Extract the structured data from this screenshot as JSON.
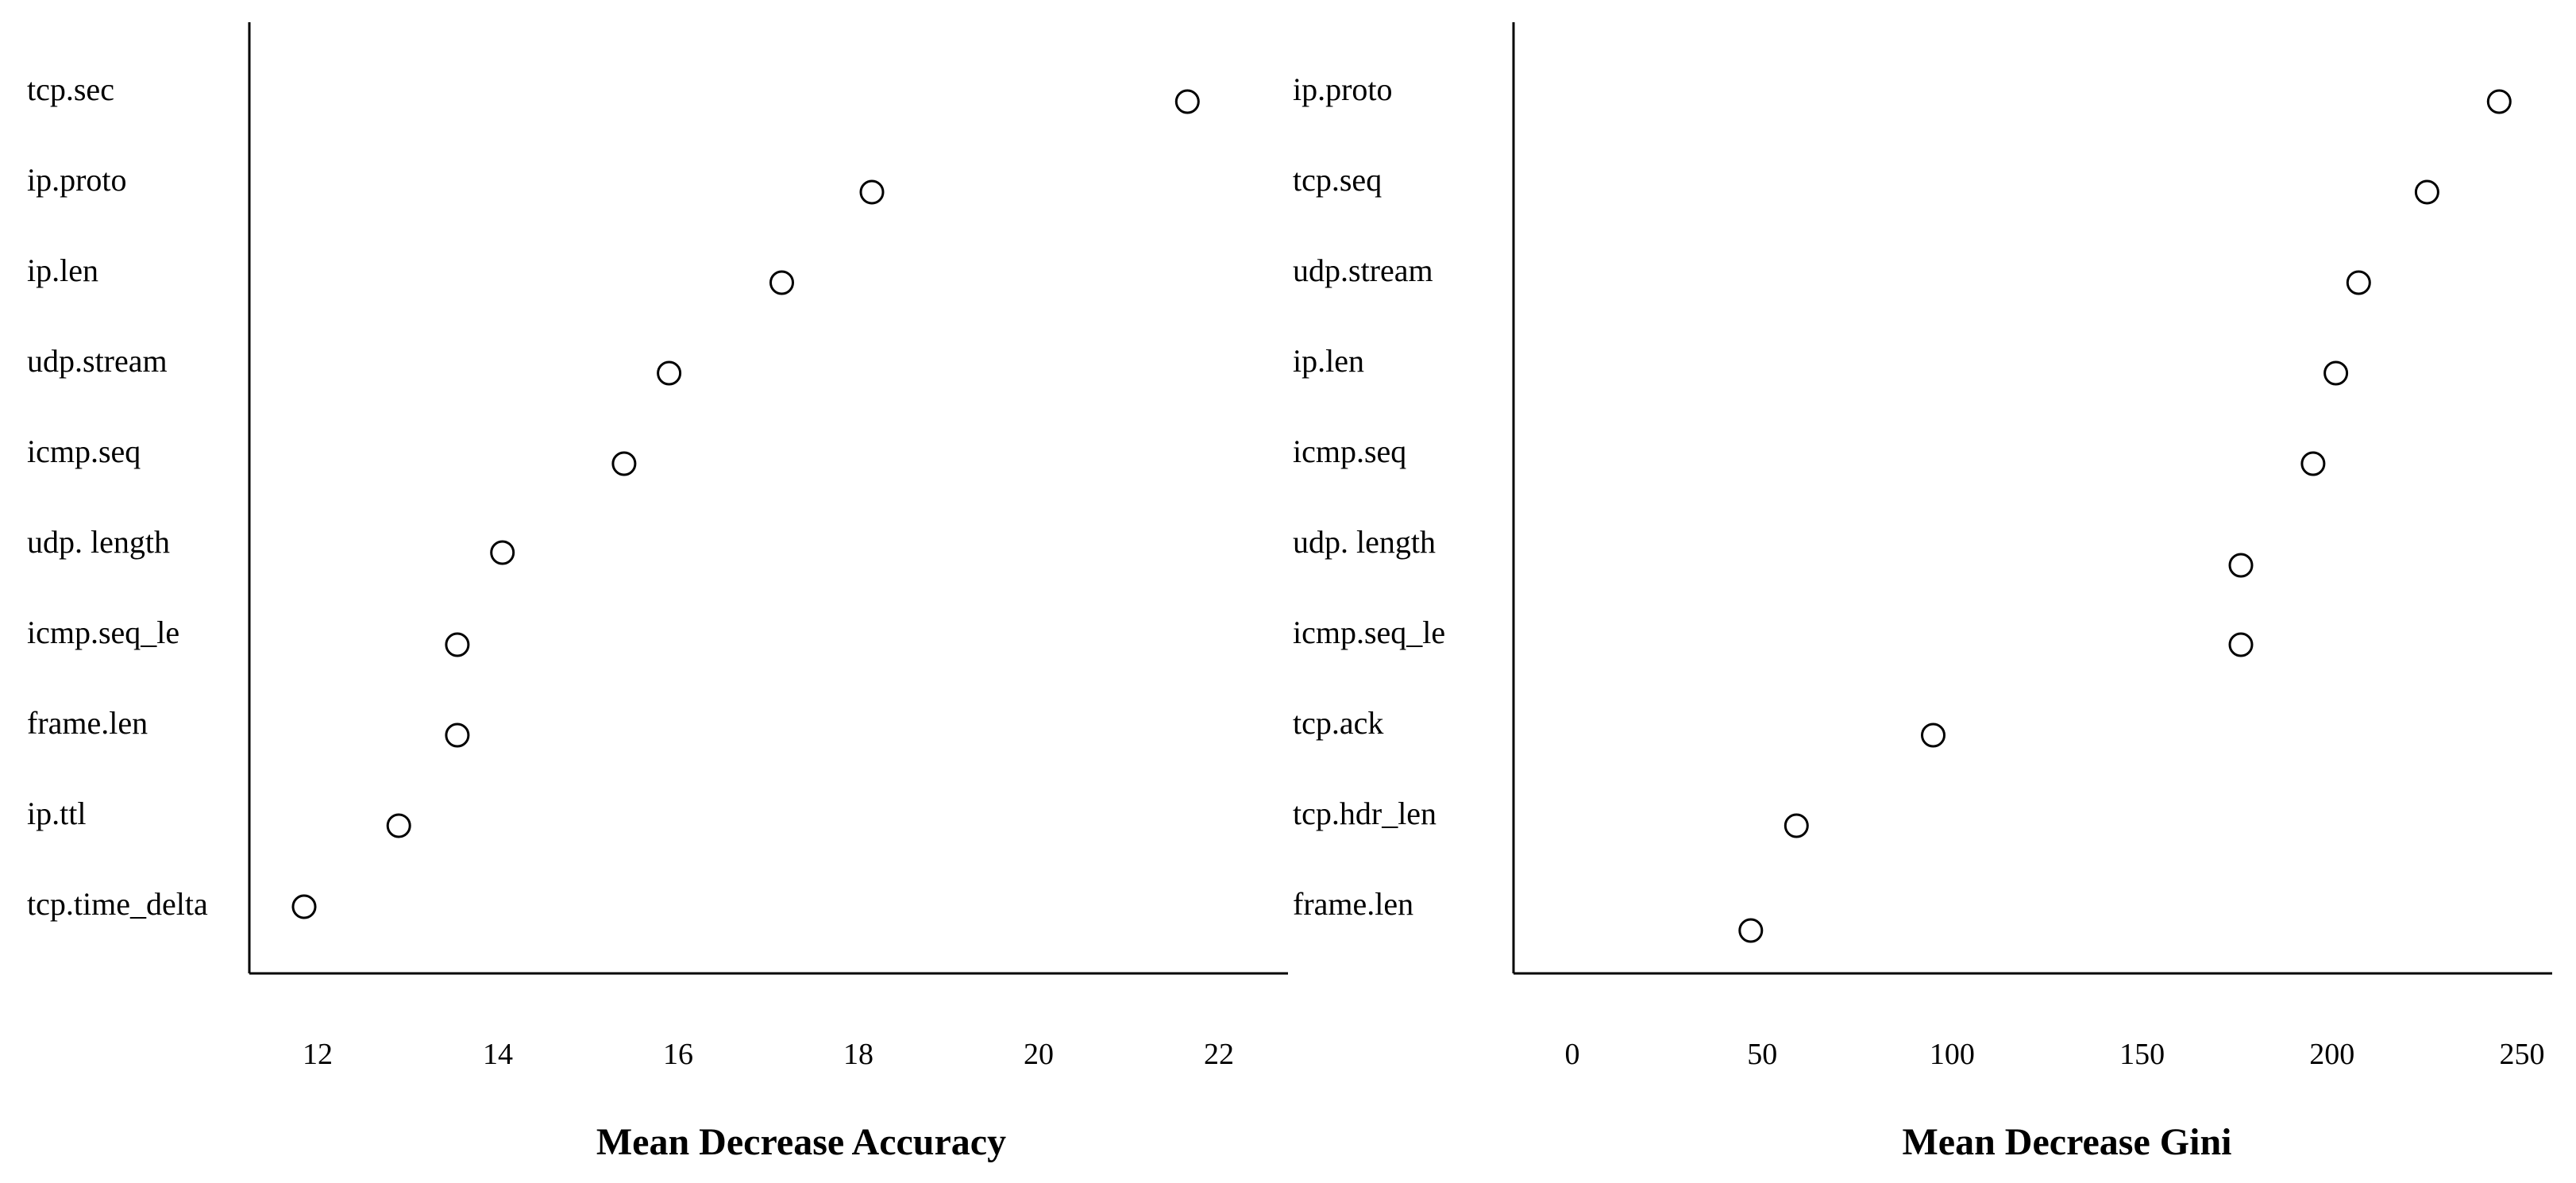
{
  "chart_data": [
    {
      "type": "scatter",
      "title": "",
      "xlabel": "Mean Decrease Accuracy",
      "ylabel": "",
      "xlim": [
        11.3,
        22.8
      ],
      "xticks": [
        "12",
        "14",
        "16",
        "18",
        "20",
        "22"
      ],
      "grid": false,
      "legend": "none",
      "categories": [
        "tcp.sec",
        "ip.proto",
        "ip.len",
        "udp.stream",
        "icmp.seq",
        "udp. length",
        "icmp.seq_le",
        "frame.len",
        "ip.ttl",
        "tcp.time_delta"
      ],
      "values": [
        21.65,
        18.15,
        17.15,
        15.9,
        15.4,
        14.05,
        13.55,
        13.55,
        12.9,
        11.85
      ]
    },
    {
      "type": "scatter",
      "title": "",
      "xlabel": "Mean Decrease Gini",
      "ylabel": "",
      "xlim": [
        -15,
        270
      ],
      "xticks": [
        "0",
        "50",
        "100",
        "150",
        "200",
        "250"
      ],
      "grid": false,
      "legend": "none",
      "categories": [
        "ip.proto",
        "tcp.seq",
        "udp.stream",
        "ip.len",
        "icmp.seq",
        "udp. length",
        "icmp.seq_le",
        "tcp.ack",
        "tcp.hdr_len",
        "frame.len"
      ],
      "values": [
        244,
        225,
        207,
        201,
        195,
        176,
        176,
        95,
        59,
        47
      ]
    }
  ]
}
